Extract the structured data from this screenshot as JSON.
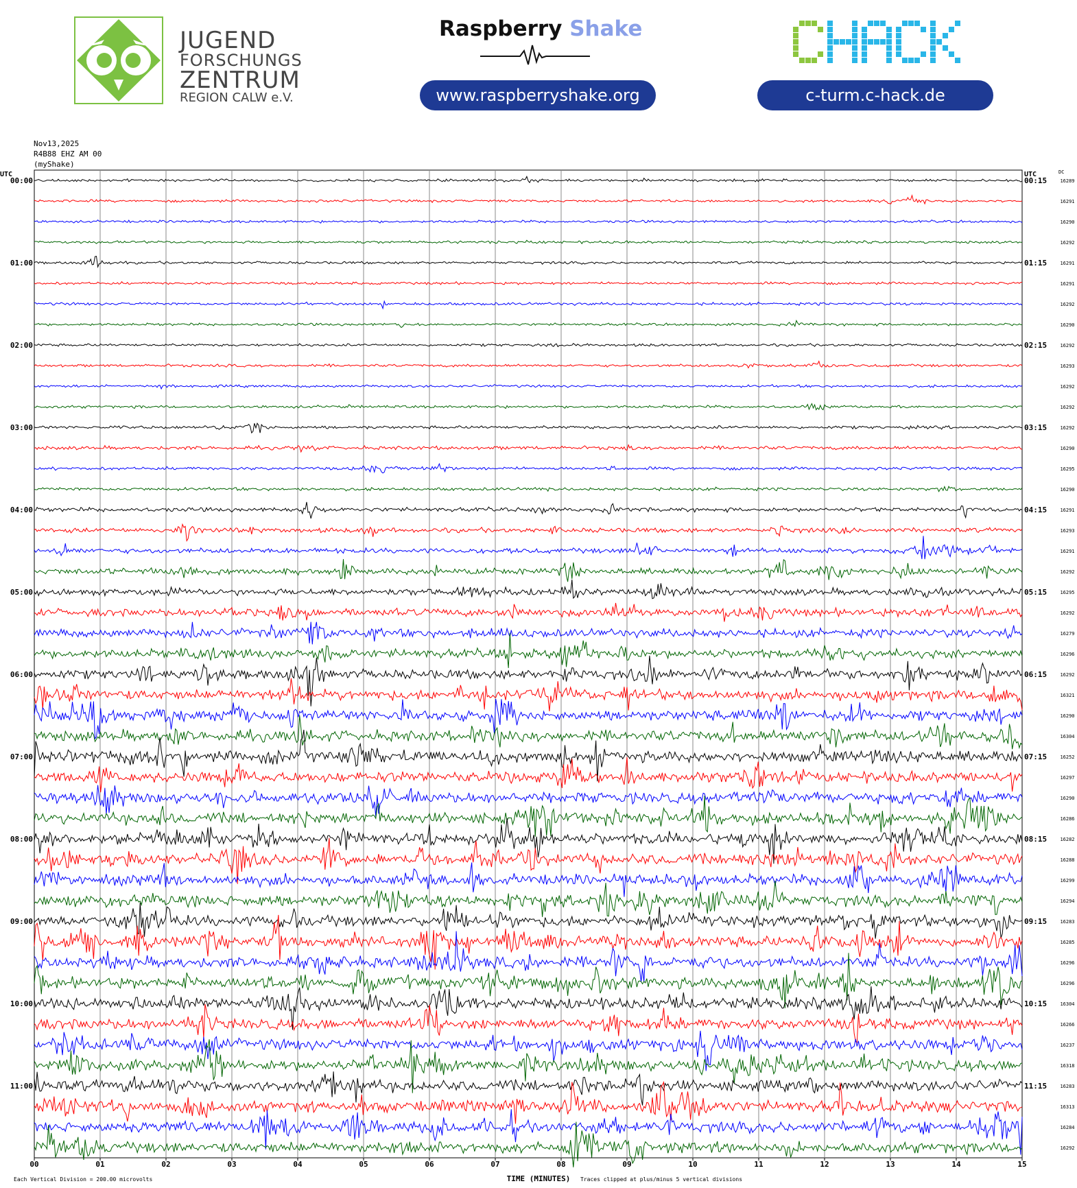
{
  "header": {
    "jfz_logo": {
      "icon": "owl-icon",
      "line1": "JUGEND",
      "line2": "FORSCHUNGS",
      "line3": "ZENTRUM",
      "line4": "REGION CALW e.V."
    },
    "raspberry_shake": {
      "word1": "Raspberry",
      "word2": "Shake",
      "icon": "seismogram-wave-icon",
      "url_label": "www.raspberryshake.org"
    },
    "chack": {
      "logo_text": "CHACK",
      "url_label": "c-turm.c-hack.de"
    },
    "colors": {
      "jfz_green": "#7cc142",
      "pill_blue": "#1e3a94",
      "shake_blue": "#8aa0e8",
      "chack_green": "#8dc63f",
      "chack_cyan": "#29b6e8"
    }
  },
  "meta": {
    "date": "Nov13,2025",
    "station": "R4B88 EHZ AM 00",
    "source": "(myShake)"
  },
  "chart_data": {
    "type": "helicorder",
    "left_axis_title": "UTC",
    "right_axis_title": "UTC",
    "dc_title": "DC",
    "left_hour_labels": [
      "00:00",
      "01:00",
      "02:00",
      "03:00",
      "04:00",
      "05:00",
      "06:00",
      "07:00",
      "08:00",
      "09:00",
      "10:00",
      "11:00"
    ],
    "right_hour_labels": [
      "00:15",
      "01:15",
      "02:15",
      "03:15",
      "04:15",
      "05:15",
      "06:15",
      "07:15",
      "08:15",
      "09:15",
      "10:15",
      "11:15"
    ],
    "x_tick_labels": [
      "00",
      "01",
      "02",
      "03",
      "04",
      "05",
      "06",
      "07",
      "08",
      "09",
      "10",
      "11",
      "12",
      "13",
      "14",
      "15"
    ],
    "xlabel": "TIME (MINUTES)",
    "minutes_per_line": 15,
    "line_colors": [
      "#000000",
      "#ff0000",
      "#0000ff",
      "#006400"
    ],
    "dc_offsets": [
      16289,
      16291,
      16290,
      16292,
      16291,
      16291,
      16292,
      16290,
      16292,
      16293,
      16292,
      16292,
      16292,
      16290,
      16295,
      16290,
      16291,
      16293,
      16291,
      16292,
      16295,
      16292,
      16279,
      16296,
      16292,
      16321,
      16290,
      16304,
      16252,
      16297,
      16290,
      16286,
      16282,
      16288,
      16299,
      16294,
      16283,
      16285,
      16296,
      16296,
      16304,
      16266,
      16237,
      16318,
      16283,
      16313,
      16284,
      16292
    ],
    "activity_level": [
      0.05,
      0.05,
      0.05,
      0.05,
      0.05,
      0.05,
      0.07,
      0.05,
      0.05,
      0.07,
      0.05,
      0.07,
      0.1,
      0.15,
      0.1,
      0.1,
      0.2,
      0.25,
      0.3,
      0.4,
      0.45,
      0.55,
      0.6,
      0.65,
      0.7,
      0.8,
      0.8,
      0.85,
      0.85,
      0.85,
      0.85,
      0.85,
      0.85,
      0.85,
      0.85,
      0.85,
      0.85,
      0.85,
      0.85,
      0.85,
      0.85,
      0.85,
      0.85,
      0.85,
      0.85,
      0.85,
      0.85,
      0.85
    ],
    "footer_left": "Each Vertical Division =  200.00 microvolts",
    "footer_right": "Traces clipped at plus/minus 5 vertical divisions"
  }
}
